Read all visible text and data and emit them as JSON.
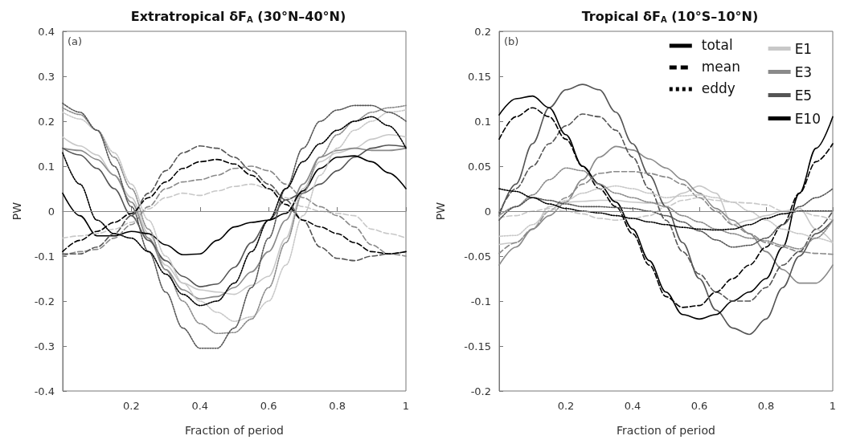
{
  "chart_data": [
    {
      "type": "line",
      "title": "Extratropical δF$_{A}$ (30°N–40°N)",
      "xlabel": "Fraction of period",
      "ylabel": "PW",
      "annotations": [
        "(a)"
      ],
      "xlim": [
        0,
        1
      ],
      "ylim": [
        -0.4,
        0.4
      ],
      "xticks": [
        {
          "value": 0,
          "label": null
        },
        0.2,
        0.4,
        0.6,
        0.8,
        1
      ],
      "yticks": [
        -0.4,
        -0.3,
        -0.2,
        -0.1,
        0,
        0.1,
        0.2,
        0.3,
        0.4
      ],
      "legend": false,
      "ref_lines": [
        {
          "axis": "y",
          "value": 0,
          "color": "#888888"
        }
      ],
      "x": [
        0,
        0.05,
        0.1,
        0.15,
        0.2,
        0.25,
        0.3,
        0.35,
        0.4,
        0.45,
        0.5,
        0.55,
        0.6,
        0.65,
        0.7,
        0.75,
        0.8,
        0.85,
        0.9,
        0.95,
        1
      ],
      "series": [
        {
          "color": "#c8c8c8",
          "line_style": "solid",
          "values": [
            0.165,
            0.145,
            0.125,
            0.08,
            0.03,
            -0.05,
            -0.12,
            -0.16,
            -0.175,
            -0.18,
            -0.185,
            -0.165,
            -0.145,
            -0.06,
            0.05,
            0.11,
            0.13,
            0.14,
            0.16,
            0.17,
            0.165
          ]
        },
        {
          "color": "#8a8a8a",
          "line_style": "solid",
          "values": [
            0.14,
            0.135,
            0.115,
            0.08,
            0.02,
            -0.06,
            -0.13,
            -0.175,
            -0.195,
            -0.19,
            -0.17,
            -0.135,
            -0.09,
            -0.02,
            0.06,
            0.12,
            0.135,
            0.14,
            0.135,
            0.135,
            0.14
          ]
        },
        {
          "color": "#555555",
          "line_style": "solid",
          "values": [
            0.14,
            0.125,
            0.095,
            0.05,
            -0.01,
            -0.065,
            -0.11,
            -0.145,
            -0.168,
            -0.162,
            -0.125,
            -0.07,
            -0.02,
            0.025,
            0.04,
            0.06,
            0.09,
            0.12,
            0.14,
            0.147,
            0.143
          ]
        },
        {
          "color": "#000000",
          "line_style": "solid",
          "values": [
            0.04,
            -0.01,
            -0.055,
            -0.055,
            -0.045,
            -0.05,
            -0.075,
            -0.097,
            -0.095,
            -0.065,
            -0.035,
            -0.025,
            -0.02,
            -0.005,
            0.045,
            0.095,
            0.12,
            0.123,
            0.11,
            0.085,
            0.05
          ]
        },
        {
          "color": "#c8c8c8",
          "line_style": "dashed",
          "values": [
            -0.06,
            -0.055,
            -0.05,
            -0.04,
            -0.025,
            0.005,
            0.03,
            0.04,
            0.035,
            0.045,
            0.055,
            0.06,
            0.05,
            0.03,
            0.01,
            0,
            -0.005,
            -0.01,
            -0.04,
            -0.05,
            -0.06
          ]
        },
        {
          "color": "#8a8a8a",
          "line_style": "dashed",
          "values": [
            -0.1,
            -0.09,
            -0.085,
            -0.06,
            -0.03,
            0.01,
            0.05,
            0.065,
            0.07,
            0.08,
            0.095,
            0.1,
            0.09,
            0.06,
            0.03,
            0.01,
            -0.01,
            -0.035,
            -0.075,
            -0.095,
            -0.1
          ]
        },
        {
          "color": "#555555",
          "line_style": "dashed",
          "values": [
            -0.095,
            -0.095,
            -0.08,
            -0.05,
            -0.01,
            0.04,
            0.09,
            0.13,
            0.145,
            0.14,
            0.12,
            0.09,
            0.06,
            0.025,
            -0.02,
            -0.08,
            -0.105,
            -0.11,
            -0.1,
            -0.095,
            -0.09
          ]
        },
        {
          "color": "#000000",
          "line_style": "dashed",
          "values": [
            -0.09,
            -0.065,
            -0.045,
            -0.025,
            -0.005,
            0.03,
            0.065,
            0.095,
            0.11,
            0.115,
            0.105,
            0.08,
            0.05,
            0.015,
            -0.02,
            -0.035,
            -0.05,
            -0.07,
            -0.09,
            -0.095,
            -0.09
          ]
        },
        {
          "color": "#c8c8c8",
          "line_style": "dotted",
          "values": [
            0.22,
            0.205,
            0.18,
            0.13,
            0.06,
            -0.02,
            -0.1,
            -0.16,
            -0.2,
            -0.225,
            -0.245,
            -0.235,
            -0.2,
            -0.12,
            -0.01,
            0.08,
            0.14,
            0.18,
            0.2,
            0.22,
            0.225
          ]
        },
        {
          "color": "#8a8a8a",
          "line_style": "dotted",
          "values": [
            0.23,
            0.215,
            0.18,
            0.12,
            0.05,
            -0.04,
            -0.13,
            -0.2,
            -0.25,
            -0.272,
            -0.27,
            -0.24,
            -0.17,
            -0.07,
            0.04,
            0.12,
            0.17,
            0.2,
            0.22,
            0.23,
            0.235
          ]
        },
        {
          "color": "#555555",
          "line_style": "dotted",
          "values": [
            0.24,
            0.22,
            0.18,
            0.1,
            0.01,
            -0.09,
            -0.18,
            -0.26,
            -0.305,
            -0.305,
            -0.26,
            -0.17,
            -0.06,
            0.05,
            0.14,
            0.2,
            0.225,
            0.235,
            0.235,
            0.22,
            0.2
          ]
        },
        {
          "color": "#000000",
          "line_style": "dotted",
          "values": [
            0.13,
            0.06,
            -0.02,
            -0.05,
            -0.06,
            -0.09,
            -0.14,
            -0.185,
            -0.21,
            -0.2,
            -0.16,
            -0.09,
            -0.02,
            0.05,
            0.11,
            0.15,
            0.18,
            0.2,
            0.21,
            0.19,
            0.14
          ]
        }
      ]
    },
    {
      "type": "line",
      "title": "Tropical δF$_{A}$ (10°S–10°N)",
      "xlabel": "Fraction of period",
      "ylabel": "PW",
      "annotations": [
        "(b)",
        "total",
        "mean",
        "eddy"
      ],
      "xlim": [
        0,
        1
      ],
      "ylim": [
        -0.2,
        0.2
      ],
      "xticks": [
        {
          "value": 0,
          "label": null
        },
        0.2,
        0.4,
        0.6,
        0.8,
        1
      ],
      "yticks": [
        -0.2,
        -0.15,
        -0.1,
        -0.05,
        0,
        0.05,
        0.1,
        0.15,
        0.2
      ],
      "legend": "top right",
      "ref_lines": [
        {
          "axis": "y",
          "value": 0,
          "color": "#888888"
        }
      ],
      "x": [
        0,
        0.05,
        0.1,
        0.15,
        0.2,
        0.25,
        0.3,
        0.35,
        0.4,
        0.45,
        0.5,
        0.55,
        0.6,
        0.65,
        0.7,
        0.75,
        0.8,
        0.85,
        0.9,
        0.95,
        1
      ],
      "series": [
        {
          "name": "E1",
          "color": "#c8c8c8",
          "line_style": "solid",
          "values": [
            -0.037,
            -0.035,
            -0.02,
            0.005,
            0.01,
            0.011,
            0.012,
            0.012,
            0.01,
            0.009,
            0.009,
            0.02,
            0.028,
            0.02,
            -0.015,
            -0.01,
            -0.005,
            0,
            0.003,
            -0.02,
            -0.035
          ]
        },
        {
          "name": "E3",
          "color": "#8a8a8a",
          "line_style": "solid",
          "values": [
            -0.06,
            -0.04,
            -0.02,
            -0.005,
            0.01,
            0.035,
            0.06,
            0.072,
            0.068,
            0.058,
            0.048,
            0.035,
            0.02,
            0.003,
            -0.01,
            -0.025,
            -0.045,
            -0.065,
            -0.08,
            -0.08,
            -0.06
          ]
        },
        {
          "name": "E5",
          "color": "#555555",
          "line_style": "solid",
          "values": [
            -0.005,
            0.03,
            0.075,
            0.115,
            0.135,
            0.141,
            0.135,
            0.11,
            0.075,
            0.04,
            0.005,
            -0.035,
            -0.075,
            -0.11,
            -0.13,
            -0.137,
            -0.12,
            -0.085,
            -0.05,
            -0.025,
            -0.01
          ]
        },
        {
          "name": "E10",
          "color": "#000000",
          "line_style": "solid",
          "values": [
            0.107,
            0.125,
            0.128,
            0.115,
            0.085,
            0.05,
            0.03,
            0.01,
            -0.02,
            -0.055,
            -0.09,
            -0.115,
            -0.12,
            -0.115,
            -0.1,
            -0.09,
            -0.075,
            -0.04,
            0.02,
            0.07,
            0.105
          ]
        },
        {
          "color": "#c8c8c8",
          "line_style": "dashed",
          "values": [
            -0.007,
            -0.005,
            0,
            0.003,
            0,
            -0.003,
            -0.008,
            -0.01,
            -0.008,
            -0.005,
            0.005,
            0.012,
            0.015,
            0.012,
            0.01,
            0.009,
            0.007,
            0,
            0,
            -0.005,
            -0.01
          ]
        },
        {
          "color": "#8a8a8a",
          "line_style": "dashed",
          "values": [
            -0.047,
            -0.035,
            -0.02,
            0,
            0.015,
            0.03,
            0.042,
            0.044,
            0.044,
            0.042,
            0.038,
            0.03,
            0.015,
            0,
            -0.015,
            -0.025,
            -0.035,
            -0.04,
            -0.045,
            -0.047,
            -0.048
          ]
        },
        {
          "color": "#555555",
          "line_style": "dashed",
          "values": [
            -0.002,
            0.025,
            0.05,
            0.075,
            0.095,
            0.108,
            0.105,
            0.09,
            0.06,
            0.025,
            -0.01,
            -0.045,
            -0.07,
            -0.09,
            -0.1,
            -0.1,
            -0.085,
            -0.06,
            -0.045,
            -0.02,
            0
          ]
        },
        {
          "color": "#000000",
          "line_style": "dashed",
          "values": [
            0.08,
            0.105,
            0.115,
            0.105,
            0.08,
            0.05,
            0.025,
            0.005,
            -0.025,
            -0.06,
            -0.095,
            -0.107,
            -0.105,
            -0.09,
            -0.075,
            -0.06,
            -0.04,
            -0.015,
            0.02,
            0.055,
            0.075
          ]
        },
        {
          "color": "#c8c8c8",
          "line_style": "dotted",
          "values": [
            -0.028,
            -0.027,
            -0.015,
            0,
            0.012,
            0.02,
            0.025,
            0.028,
            0.025,
            0.02,
            0.015,
            0.017,
            0.018,
            0.015,
            0.01,
            0,
            -0.01,
            -0.02,
            -0.025,
            -0.03,
            -0.035
          ]
        },
        {
          "color": "#8a8a8a",
          "line_style": "dotted",
          "values": [
            -0.005,
            0.005,
            0.018,
            0.035,
            0.048,
            0.045,
            0.03,
            0.02,
            0.015,
            0.01,
            0.005,
            -0.005,
            -0.012,
            -0.02,
            -0.025,
            -0.03,
            -0.033,
            -0.038,
            -0.042,
            -0.03,
            -0.01
          ]
        },
        {
          "color": "#555555",
          "line_style": "dotted",
          "values": [
            -0.01,
            0.005,
            0.015,
            0.012,
            0.008,
            0.005,
            0.005,
            0.004,
            0.003,
            0,
            -0.005,
            -0.012,
            -0.022,
            -0.032,
            -0.04,
            -0.038,
            -0.03,
            -0.015,
            0.005,
            0.015,
            0.025
          ]
        },
        {
          "color": "#000000",
          "line_style": "dotted",
          "values": [
            0.025,
            0.022,
            0.015,
            0.008,
            0.003,
            0,
            -0.002,
            -0.005,
            -0.008,
            -0.012,
            -0.015,
            -0.018,
            -0.02,
            -0.021,
            -0.02,
            -0.015,
            -0.008,
            -0.003,
            0,
            0,
            0
          ]
        }
      ]
    }
  ]
}
